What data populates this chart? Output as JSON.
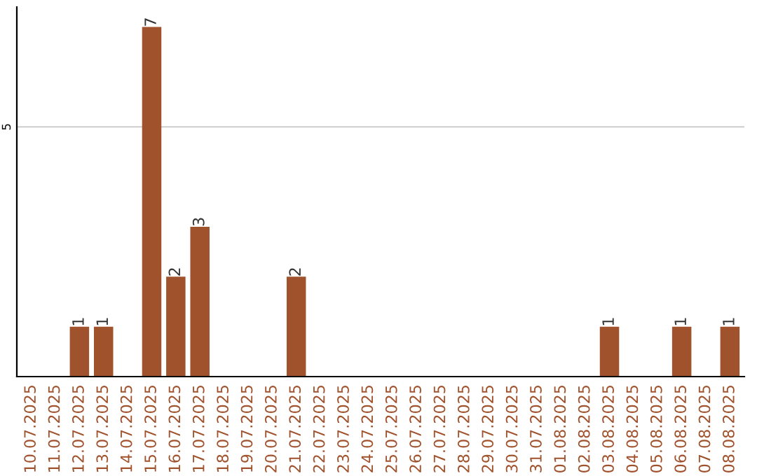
{
  "chart_data": {
    "type": "bar",
    "categories": [
      "10.07.2025",
      "11.07.2025",
      "12.07.2025",
      "13.07.2025",
      "14.07.2025",
      "15.07.2025",
      "16.07.2025",
      "17.07.2025",
      "18.07.2025",
      "19.07.2025",
      "20.07.2025",
      "21.07.2025",
      "22.07.2025",
      "23.07.2025",
      "24.07.2025",
      "25.07.2025",
      "26.07.2025",
      "27.07.2025",
      "28.07.2025",
      "29.07.2025",
      "30.07.2025",
      "31.07.2025",
      "01.08.2025",
      "02.08.2025",
      "03.08.2025",
      "04.08.2025",
      "05.08.2025",
      "06.08.2025",
      "07.08.2025",
      "08.08.2025"
    ],
    "values": [
      0,
      0,
      1,
      1,
      0,
      7,
      2,
      3,
      0,
      0,
      0,
      2,
      0,
      0,
      0,
      0,
      0,
      0,
      0,
      0,
      0,
      0,
      0,
      0,
      1,
      0,
      0,
      1,
      0,
      1
    ],
    "value_labels": [
      null,
      null,
      "1",
      "1",
      null,
      "7",
      "2",
      "3",
      null,
      null,
      null,
      "2",
      null,
      null,
      null,
      null,
      null,
      null,
      null,
      null,
      null,
      null,
      null,
      null,
      "1",
      null,
      null,
      "1",
      null,
      "1"
    ],
    "color": "#a0522d",
    "ylim": [
      0,
      7.4
    ],
    "yticks": [
      5
    ],
    "grid": "y"
  }
}
